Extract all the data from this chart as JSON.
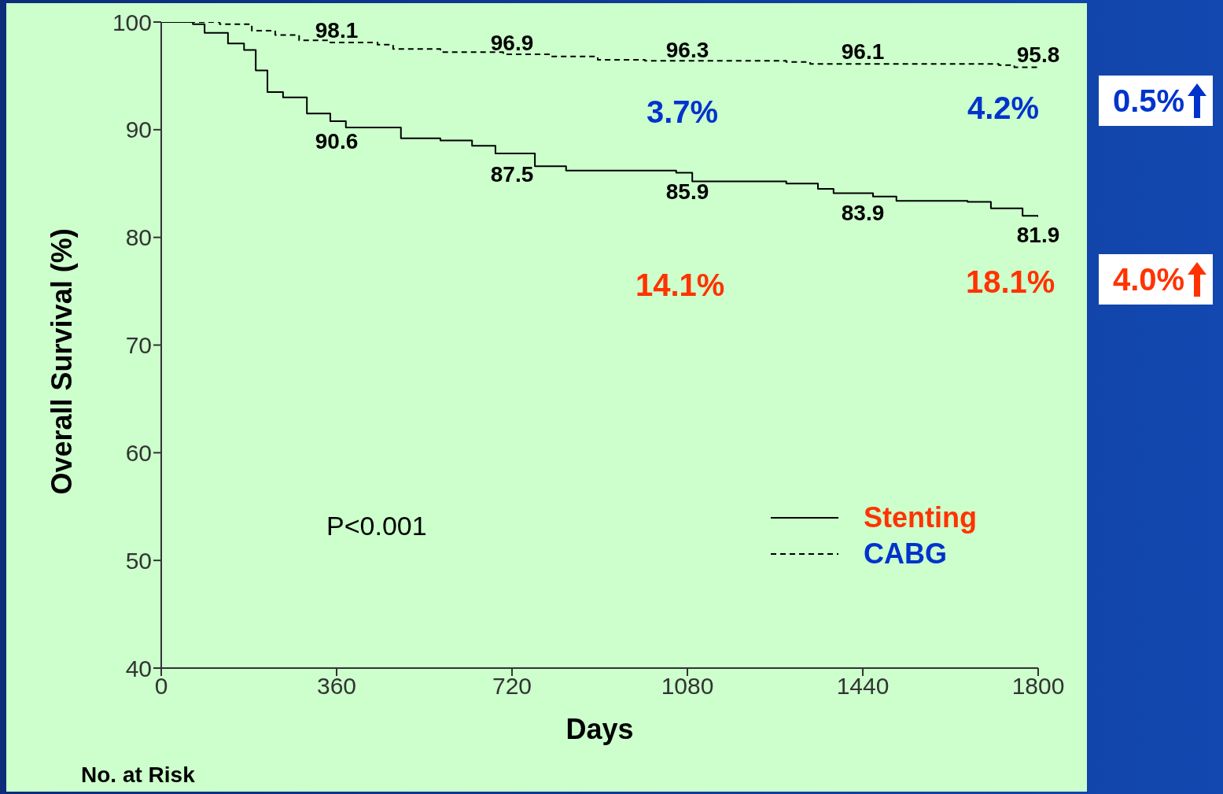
{
  "chart_data": {
    "type": "step",
    "xlabel": "Days",
    "ylabel": "Overall Survival (%)",
    "xlim": [
      0,
      1800
    ],
    "xticks": [
      0,
      360,
      720,
      1080,
      1440,
      1800
    ],
    "ylim": [
      40,
      100
    ],
    "yticks": [
      40,
      50,
      60,
      70,
      80,
      90,
      100
    ],
    "legend": "bottom right",
    "marker": "none",
    "series": [
      {
        "name": "Stenting",
        "color": "#000000",
        "line_style": "solid",
        "x": [
          0,
          65,
          89,
          137,
          170,
          194,
          218,
          250,
          299,
          347,
          379,
          444,
          492,
          573,
          638,
          686,
          767,
          831,
          1057,
          1090,
          1283,
          1348,
          1380,
          1461,
          1509,
          1655,
          1703,
          1768,
          1800
        ],
        "values": [
          100,
          99.8,
          99,
          98,
          97.4,
          95.5,
          93.5,
          93,
          91.5,
          90.8,
          90.2,
          90.2,
          89.2,
          89,
          88.5,
          87.8,
          86.6,
          86.2,
          86,
          85.2,
          85,
          84.5,
          84.1,
          83.8,
          83.4,
          83.3,
          82.7,
          82,
          81.9
        ]
      },
      {
        "name": "CABG",
        "color": "#000000",
        "line_style": "dashed",
        "x": [
          0,
          73,
          120,
          186,
          234,
          283,
          347,
          444,
          476,
          573,
          702,
          799,
          896,
          993,
          1283,
          1332,
          1719,
          1751,
          1800
        ],
        "values": [
          100,
          100,
          99.8,
          99.2,
          98.8,
          98.3,
          98.1,
          97.9,
          97.5,
          97.2,
          97,
          96.8,
          96.5,
          96.4,
          96.3,
          96.1,
          96,
          95.8,
          95.8
        ]
      }
    ],
    "annotations": [
      {
        "text": "98.1",
        "x": 360,
        "y": 98.1
      },
      {
        "text": "96.9",
        "x": 720,
        "y": 96.9
      },
      {
        "text": "96.3",
        "x": 1080,
        "y": 96.3
      },
      {
        "text": "96.1",
        "x": 1440,
        "y": 96.1
      },
      {
        "text": "95.8",
        "x": 1800,
        "y": 95.8
      },
      {
        "text": "90.6",
        "x": 360,
        "y": 90.6
      },
      {
        "text": "87.5",
        "x": 720,
        "y": 87.5
      },
      {
        "text": "85.9",
        "x": 1080,
        "y": 85.9
      },
      {
        "text": "83.9",
        "x": 1440,
        "y": 83.9
      },
      {
        "text": "81.9",
        "x": 1800,
        "y": 81.9
      },
      "3.7%",
      "4.2%",
      "14.1%",
      "18.1%",
      "0.5%",
      "4.0%",
      "P<0.001",
      "No. at Risk"
    ]
  }
}
